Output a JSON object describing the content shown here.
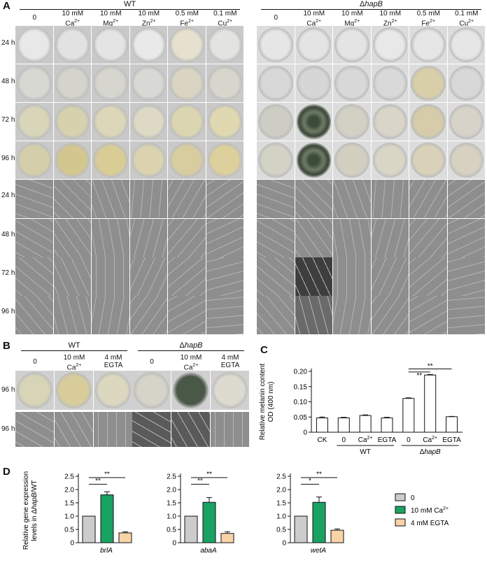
{
  "panels": {
    "A": "A",
    "B": "B",
    "C": "C",
    "D": "D"
  },
  "panelA": {
    "groups": [
      "WT",
      "ΔhapB"
    ],
    "conditions": [
      "0",
      "10 mM Ca2+",
      "10 mM Mg2+",
      "10 mM Zn2+",
      "0.5 mM Fe2+",
      "0.1 mM Cu2+"
    ],
    "time_rows": [
      "24 h",
      "48 h",
      "72 h",
      "96 h"
    ]
  },
  "panelB": {
    "groups": [
      "WT",
      "ΔhapB"
    ],
    "conditions": [
      "0",
      "10 mM Ca2+",
      "4 mM EGTA"
    ],
    "time_rows": [
      "96 h",
      "96 h"
    ]
  },
  "chart_data": [
    {
      "type": "bar",
      "panel": "C",
      "ylabel": "Relative melanin content OD (400 nm)",
      "categories": [
        "CK",
        "0",
        "Ca2+",
        "EGTA",
        "0",
        "Ca2+",
        "EGTA"
      ],
      "group_labels": [
        "WT",
        "ΔhapB"
      ],
      "values": [
        0.047,
        0.047,
        0.055,
        0.047,
        0.111,
        0.188,
        0.051
      ],
      "errors": [
        0.003,
        0.002,
        0.002,
        0.002,
        0.002,
        0.002,
        0.001
      ],
      "ylim": [
        0,
        0.2
      ],
      "yticks": [
        "0",
        "0.05",
        "0.10",
        "0.15",
        "0.20"
      ],
      "significance": [
        "**",
        "**"
      ]
    },
    {
      "type": "bar",
      "panel": "D",
      "ylabel": "Relative gene expression levels in ΔhapB/WT",
      "yticks": [
        "0",
        "0.5",
        "1.0",
        "1.5",
        "2.0",
        "2.5"
      ],
      "ylim": [
        0,
        2.5
      ],
      "genes": [
        {
          "name": "brlA",
          "values": [
            1.0,
            1.8,
            0.37
          ],
          "errors": [
            0,
            0.12,
            0.04
          ],
          "sig": [
            "**",
            "**"
          ]
        },
        {
          "name": "abaA",
          "values": [
            1.0,
            1.52,
            0.35
          ],
          "errors": [
            0,
            0.18,
            0.06
          ],
          "sig": [
            "**",
            "**"
          ]
        },
        {
          "name": "wetA",
          "values": [
            1.0,
            1.52,
            0.47
          ],
          "errors": [
            0,
            0.2,
            0.05
          ],
          "sig": [
            "*",
            "**"
          ]
        }
      ],
      "series": [
        {
          "name": "0",
          "color": "#cccccc"
        },
        {
          "name": "10 mM Ca2+",
          "color": "#1aa263"
        },
        {
          "name": "4 mM EGTA",
          "color": "#f8d3a8"
        }
      ]
    }
  ]
}
